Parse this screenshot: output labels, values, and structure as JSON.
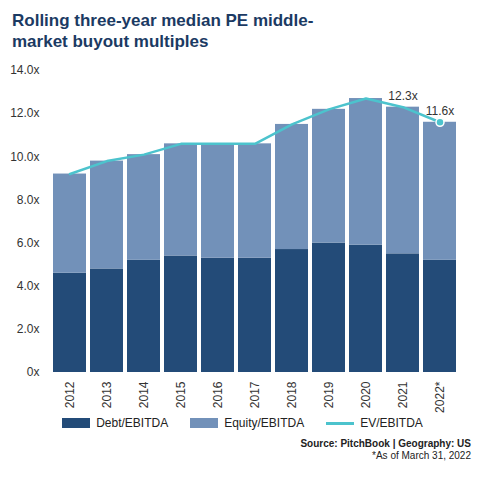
{
  "chart_data": {
    "type": "bar",
    "title": "Rolling three-year median PE middle-market buyout multiples",
    "notes": [
      "Source: PitchBook | Geography: US",
      "*As of March 31, 2022"
    ],
    "categories": [
      "2012",
      "2013",
      "2014",
      "2015",
      "2016",
      "2017",
      "2018",
      "2019",
      "2020",
      "2021",
      "2022*"
    ],
    "stacked": true,
    "series": [
      {
        "name": "Debt/EBITDA",
        "color": "#234b78",
        "values": [
          4.6,
          4.8,
          5.2,
          5.4,
          5.3,
          5.3,
          5.7,
          6.0,
          5.9,
          5.5,
          5.2
        ]
      },
      {
        "name": "Equity/EBITDA",
        "color": "#7291b9",
        "values": [
          4.6,
          5.0,
          4.9,
          5.2,
          5.3,
          5.3,
          5.8,
          6.2,
          6.8,
          6.8,
          6.4
        ]
      },
      {
        "name": "EV/EBITDA",
        "type": "line",
        "color": "#4cc3cd",
        "values": [
          9.2,
          9.8,
          10.1,
          10.6,
          10.6,
          10.6,
          11.5,
          12.2,
          12.7,
          12.3,
          11.6
        ],
        "value_labels": [
          null,
          null,
          null,
          null,
          null,
          null,
          null,
          null,
          null,
          "12.3x",
          "11.6x"
        ]
      }
    ],
    "ylim": [
      0,
      14
    ],
    "yticks": [
      {
        "value": 0,
        "label": "0x"
      },
      {
        "value": 2,
        "label": "2.0x"
      },
      {
        "value": 4,
        "label": "4.0x"
      },
      {
        "value": 6,
        "label": "6.0x"
      },
      {
        "value": 8,
        "label": "8.0x"
      },
      {
        "value": 10,
        "label": "10.0x"
      },
      {
        "value": 12,
        "label": "12.0x"
      },
      {
        "value": 14,
        "label": "14.0x"
      }
    ],
    "grid": false
  }
}
